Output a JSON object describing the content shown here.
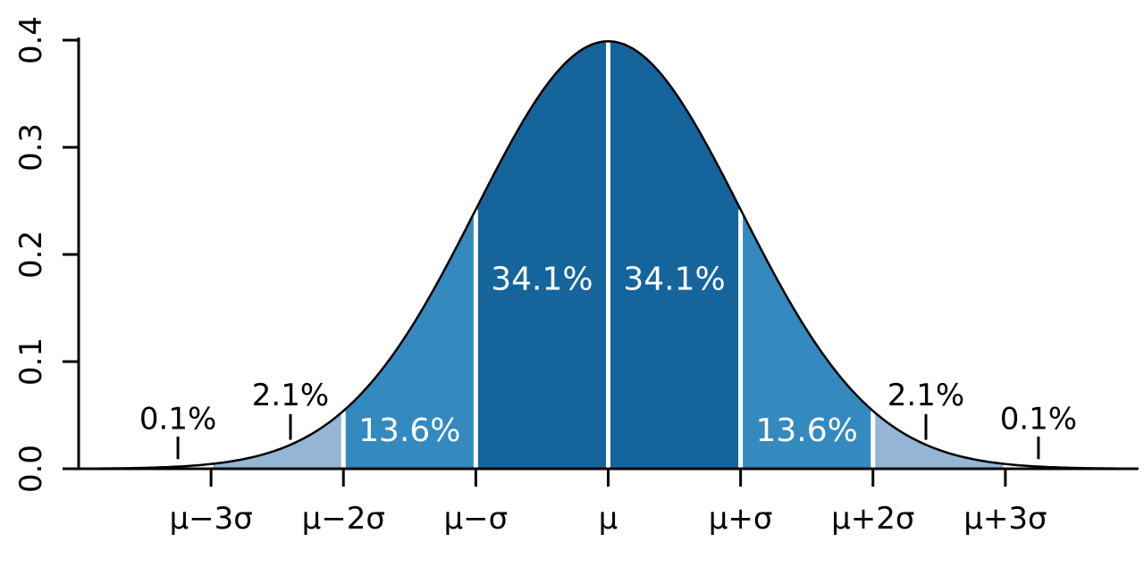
{
  "chart_data": {
    "type": "area",
    "description": "Standard normal distribution probability density function with standard-deviation bands",
    "xlim": [
      -4,
      4
    ],
    "ylim": [
      0,
      0.4
    ],
    "grid": false,
    "legend": "none",
    "curve": {
      "formula": "pdf(x) = exp(-x^2/2)/sqrt(2*pi)",
      "peak_value": 0.3989,
      "stroke_color": "#000000"
    },
    "x_ticks": [
      {
        "pos": -3,
        "label": "μ−3σ"
      },
      {
        "pos": -2,
        "label": "μ−2σ"
      },
      {
        "pos": -1,
        "label": "μ−σ"
      },
      {
        "pos": 0,
        "label": "μ"
      },
      {
        "pos": 1,
        "label": "μ+σ"
      },
      {
        "pos": 2,
        "label": "μ+2σ"
      },
      {
        "pos": 3,
        "label": "μ+3σ"
      }
    ],
    "y_ticks": [
      {
        "pos": 0.0,
        "label": "0.0"
      },
      {
        "pos": 0.1,
        "label": "0.1"
      },
      {
        "pos": 0.2,
        "label": "0.2"
      },
      {
        "pos": 0.3,
        "label": "0.3"
      },
      {
        "pos": 0.4,
        "label": "0.4"
      }
    ],
    "regions": [
      {
        "from": -4,
        "to": -3,
        "percent": 0.1,
        "color": "#ffffff"
      },
      {
        "from": -3,
        "to": -2,
        "percent": 2.1,
        "color": "#95b5d6"
      },
      {
        "from": -2,
        "to": -1,
        "percent": 13.6,
        "color": "#348abf"
      },
      {
        "from": -1,
        "to": 0,
        "percent": 34.1,
        "color": "#16649c"
      },
      {
        "from": 0,
        "to": 1,
        "percent": 34.1,
        "color": "#16649c"
      },
      {
        "from": 1,
        "to": 2,
        "percent": 13.6,
        "color": "#348abf"
      },
      {
        "from": 2,
        "to": 3,
        "percent": 2.1,
        "color": "#95b5d6"
      },
      {
        "from": 3,
        "to": 4,
        "percent": 0.1,
        "color": "#ffffff"
      }
    ],
    "divider_lines": {
      "positions": [
        -3,
        -2,
        -1,
        0,
        1,
        2,
        3
      ],
      "color": "#ffffff"
    },
    "inside_labels": [
      {
        "text": "34.1%",
        "x": -0.5,
        "y": 0.177,
        "color": "#ffffff"
      },
      {
        "text": "34.1%",
        "x": 0.5,
        "y": 0.177,
        "color": "#ffffff"
      },
      {
        "text": "13.6%",
        "x": -1.5,
        "y": 0.036,
        "color": "#ffffff"
      },
      {
        "text": "13.6%",
        "x": 1.5,
        "y": 0.036,
        "color": "#ffffff"
      }
    ],
    "outside_labels": [
      {
        "text": "2.1%",
        "x": -2.4,
        "y": 0.069,
        "tick_x": -2.4,
        "tick_y1": 0.051,
        "tick_y2": 0.027,
        "color": "#000000"
      },
      {
        "text": "2.1%",
        "x": 2.4,
        "y": 0.069,
        "tick_x": 2.4,
        "tick_y1": 0.051,
        "tick_y2": 0.027,
        "color": "#000000"
      },
      {
        "text": "0.1%",
        "x": -3.25,
        "y": 0.047,
        "tick_x": -3.25,
        "tick_y1": 0.03,
        "tick_y2": 0.009,
        "color": "#000000"
      },
      {
        "text": "0.1%",
        "x": 3.25,
        "y": 0.047,
        "tick_x": 3.25,
        "tick_y1": 0.03,
        "tick_y2": 0.009,
        "color": "#000000"
      }
    ],
    "colors": {
      "band_1sigma": "#16649c",
      "band_2sigma": "#348abf",
      "band_3sigma": "#95b5d6",
      "tail": "#ffffff",
      "axis": "#000000",
      "divider": "#ffffff"
    }
  }
}
